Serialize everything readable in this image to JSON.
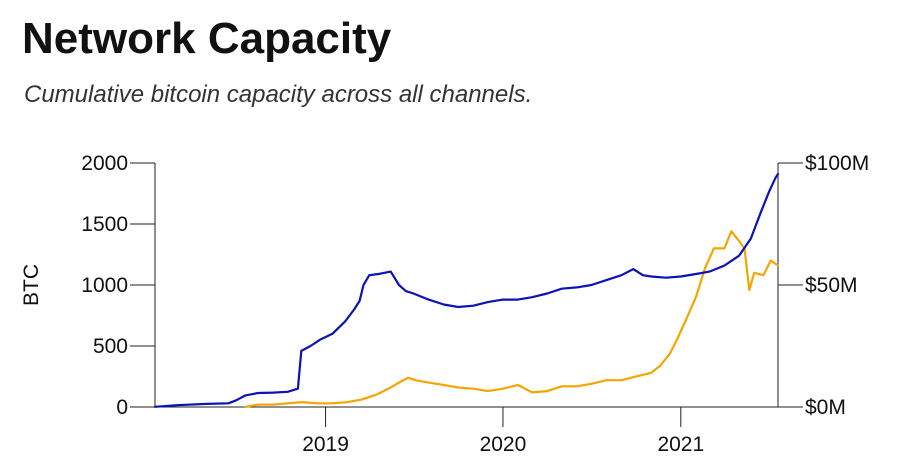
{
  "title": "Network Capacity",
  "subtitle": "Cumulative bitcoin capacity across all channels.",
  "chart_data": {
    "type": "line",
    "title": "Network Capacity",
    "subtitle": "Cumulative bitcoin capacity across all channels.",
    "ylabel": "BTC",
    "ylabel_right": "",
    "ylim": [
      0,
      2000
    ],
    "ylim_right": [
      0,
      100
    ],
    "yticks": [
      0,
      500,
      1000,
      1500,
      2000
    ],
    "yticklabels": [
      "0",
      "500",
      "1000",
      "1500",
      "2000"
    ],
    "yticks_right": [
      0,
      50,
      100
    ],
    "yticklabels_right": [
      "$0M",
      "$50M",
      "$100M"
    ],
    "xlim": [
      "2018-01-15",
      "2021-07-20"
    ],
    "xticks": [
      "2019-01-01",
      "2020-01-01",
      "2021-01-01"
    ],
    "xticklabels": [
      "2019",
      "2020",
      "2021"
    ],
    "grid": false,
    "legend": "none",
    "series": [
      {
        "axis": "left",
        "color": "#0a12b8",
        "points": [
          [
            "2018-01-15",
            2
          ],
          [
            "2018-03-01",
            15
          ],
          [
            "2018-05-01",
            25
          ],
          [
            "2018-06-15",
            30
          ],
          [
            "2018-07-01",
            55
          ],
          [
            "2018-07-20",
            95
          ],
          [
            "2018-08-15",
            115
          ],
          [
            "2018-09-15",
            118
          ],
          [
            "2018-10-15",
            125
          ],
          [
            "2018-11-05",
            150
          ],
          [
            "2018-11-12",
            460
          ],
          [
            "2018-12-01",
            500
          ],
          [
            "2018-12-20",
            550
          ],
          [
            "2019-01-15",
            600
          ],
          [
            "2019-02-10",
            700
          ],
          [
            "2019-03-01",
            800
          ],
          [
            "2019-03-12",
            870
          ],
          [
            "2019-03-20",
            1000
          ],
          [
            "2019-04-01",
            1080
          ],
          [
            "2019-04-20",
            1090
          ],
          [
            "2019-05-15",
            1110
          ],
          [
            "2019-06-01",
            1000
          ],
          [
            "2019-06-15",
            950
          ],
          [
            "2019-07-01",
            930
          ],
          [
            "2019-08-01",
            880
          ],
          [
            "2019-09-01",
            840
          ],
          [
            "2019-10-01",
            820
          ],
          [
            "2019-11-01",
            830
          ],
          [
            "2019-12-01",
            860
          ],
          [
            "2020-01-01",
            880
          ],
          [
            "2020-02-01",
            880
          ],
          [
            "2020-03-01",
            900
          ],
          [
            "2020-04-01",
            930
          ],
          [
            "2020-05-01",
            970
          ],
          [
            "2020-06-01",
            980
          ],
          [
            "2020-07-01",
            1000
          ],
          [
            "2020-08-01",
            1040
          ],
          [
            "2020-09-01",
            1080
          ],
          [
            "2020-09-25",
            1130
          ],
          [
            "2020-10-15",
            1080
          ],
          [
            "2020-11-01",
            1070
          ],
          [
            "2020-12-01",
            1060
          ],
          [
            "2021-01-01",
            1070
          ],
          [
            "2021-02-01",
            1090
          ],
          [
            "2021-03-01",
            1110
          ],
          [
            "2021-04-01",
            1160
          ],
          [
            "2021-05-01",
            1240
          ],
          [
            "2021-05-25",
            1380
          ],
          [
            "2021-06-15",
            1600
          ],
          [
            "2021-07-01",
            1760
          ],
          [
            "2021-07-15",
            1880
          ],
          [
            "2021-07-20",
            1910
          ]
        ]
      },
      {
        "axis": "right",
        "color": "#f5a500",
        "points": [
          [
            "2018-07-20",
            0
          ],
          [
            "2018-08-15",
            1
          ],
          [
            "2018-09-15",
            1
          ],
          [
            "2018-10-15",
            1.5
          ],
          [
            "2018-11-15",
            2
          ],
          [
            "2018-12-15",
            1.5
          ],
          [
            "2019-01-15",
            1.5
          ],
          [
            "2019-02-15",
            2
          ],
          [
            "2019-03-15",
            3
          ],
          [
            "2019-04-15",
            5
          ],
          [
            "2019-05-15",
            8
          ],
          [
            "2019-06-01",
            10
          ],
          [
            "2019-06-20",
            12
          ],
          [
            "2019-07-05",
            11
          ],
          [
            "2019-08-01",
            10
          ],
          [
            "2019-09-01",
            9
          ],
          [
            "2019-10-01",
            8
          ],
          [
            "2019-11-01",
            7.5
          ],
          [
            "2019-12-01",
            6.5
          ],
          [
            "2020-01-01",
            7.5
          ],
          [
            "2020-02-01",
            9
          ],
          [
            "2020-03-01",
            6
          ],
          [
            "2020-04-01",
            6.5
          ],
          [
            "2020-05-01",
            8.5
          ],
          [
            "2020-06-01",
            8.5
          ],
          [
            "2020-07-01",
            9.5
          ],
          [
            "2020-08-01",
            11
          ],
          [
            "2020-09-01",
            11
          ],
          [
            "2020-10-01",
            12.5
          ],
          [
            "2020-11-01",
            14
          ],
          [
            "2020-11-20",
            17
          ],
          [
            "2020-12-10",
            22
          ],
          [
            "2020-12-25",
            28
          ],
          [
            "2021-01-10",
            35
          ],
          [
            "2021-02-01",
            45
          ],
          [
            "2021-02-20",
            57
          ],
          [
            "2021-03-10",
            65
          ],
          [
            "2021-04-01",
            65
          ],
          [
            "2021-04-15",
            72
          ],
          [
            "2021-05-01",
            68
          ],
          [
            "2021-05-12",
            65
          ],
          [
            "2021-05-22",
            48
          ],
          [
            "2021-06-01",
            55
          ],
          [
            "2021-06-20",
            54
          ],
          [
            "2021-07-05",
            60
          ],
          [
            "2021-07-20",
            58
          ]
        ]
      }
    ]
  }
}
